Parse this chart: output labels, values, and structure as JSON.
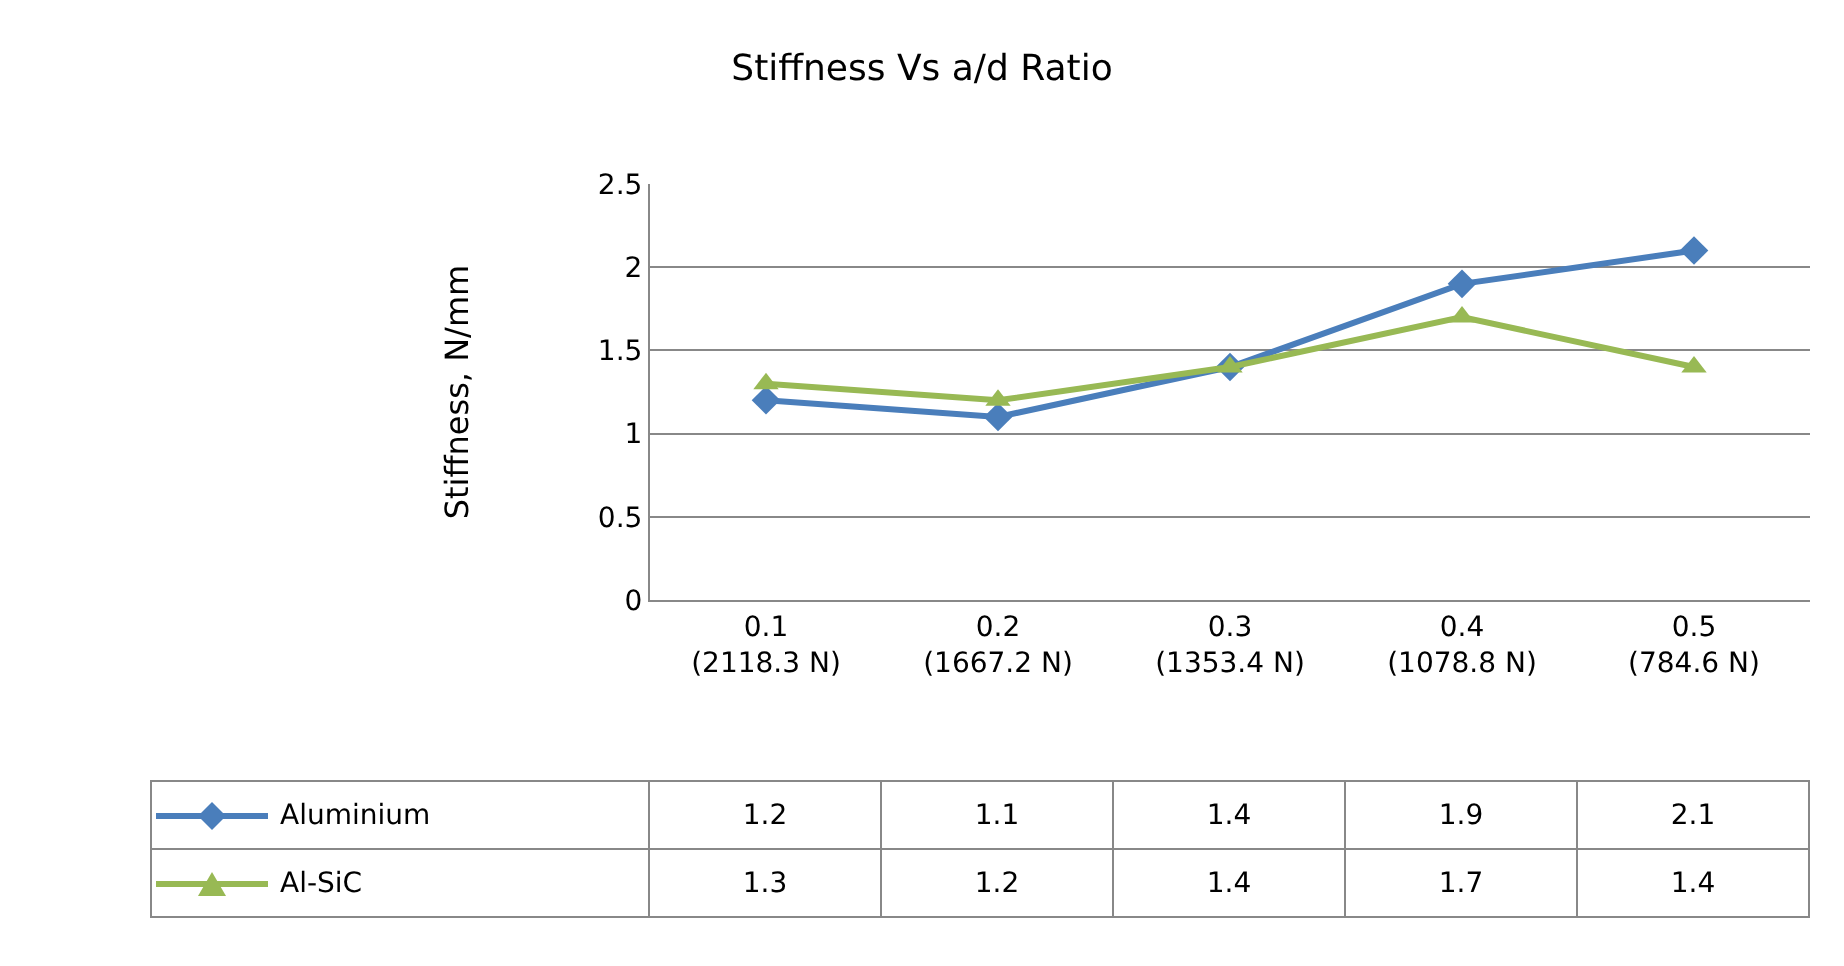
{
  "chart_data": {
    "type": "line",
    "title": "Stiffness Vs a/d Ratio",
    "ylabel": "Stiffness, N/mm",
    "categories": [
      "0.1 (2118.3 N)",
      "0.2 (1667.2 N)",
      "0.3 (1353.4 N)",
      "0.4 (1078.8 N)",
      "0.5 (784.6 N)"
    ],
    "series": [
      {
        "name": "Aluminium",
        "color": "#4a7ebb",
        "marker": "diamond",
        "values": [
          1.2,
          1.1,
          1.4,
          1.9,
          2.1
        ]
      },
      {
        "name": "Al-SiC",
        "color": "#98b954",
        "marker": "triangle",
        "values": [
          1.3,
          1.2,
          1.4,
          1.7,
          1.4
        ]
      }
    ],
    "ylim": [
      0,
      2.5
    ],
    "yticks": [
      0,
      0.5,
      1,
      1.5,
      2,
      2.5
    ],
    "grid": "y",
    "legend": "bottom left",
    "data_labels": true
  }
}
